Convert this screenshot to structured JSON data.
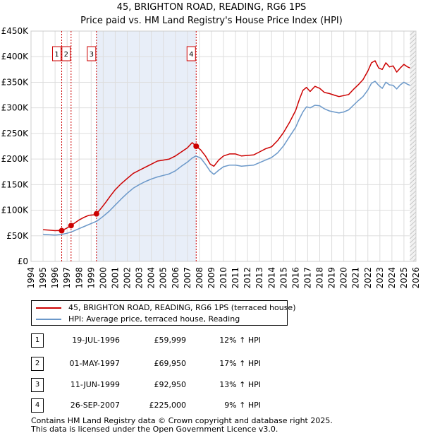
{
  "title": "45, BRIGHTON ROAD, READING, RG6 1PS",
  "subtitle": "Price paid vs. HM Land Registry's House Price Index (HPI)",
  "colors": {
    "property": "#cc0000",
    "hpi": "#6b98c9",
    "band": "#e8eef8",
    "vline": "#cc0000",
    "grid": "#dddddd"
  },
  "chart_data": {
    "type": "line",
    "title": "45, BRIGHTON ROAD, READING, RG6 1PS",
    "subtitle": "Price paid vs. HM Land Registry's House Price Index (HPI)",
    "xlabel": "",
    "ylabel": "",
    "xlim": [
      1994,
      2026
    ],
    "ylim": [
      0,
      450000
    ],
    "x_ticks": [
      "1994",
      "1995",
      "1996",
      "1997",
      "1998",
      "1999",
      "2000",
      "2001",
      "2002",
      "2003",
      "2004",
      "2005",
      "2006",
      "2007",
      "2008",
      "2009",
      "2010",
      "2011",
      "2012",
      "2013",
      "2014",
      "2015",
      "2016",
      "2017",
      "2018",
      "2019",
      "2020",
      "2021",
      "2022",
      "2023",
      "2024",
      "2025",
      "2026"
    ],
    "y_ticks": [
      {
        "value": 0,
        "label": "£0"
      },
      {
        "value": 50000,
        "label": "£50K"
      },
      {
        "value": 100000,
        "label": "£100K"
      },
      {
        "value": 150000,
        "label": "£150K"
      },
      {
        "value": 200000,
        "label": "£200K"
      },
      {
        "value": 250000,
        "label": "£250K"
      },
      {
        "value": 300000,
        "label": "£300K"
      },
      {
        "value": 350000,
        "label": "£350K"
      },
      {
        "value": 400000,
        "label": "£400K"
      },
      {
        "value": 450000,
        "label": "£450K"
      }
    ],
    "shaded_range": [
      1999.44,
      2007.73
    ],
    "series": [
      {
        "name": "45, BRIGHTON ROAD, READING, RG6 1PS (terraced house)",
        "x": [
          1995.0,
          1995.5,
          1996.0,
          1996.3,
          1996.55,
          1996.9,
          1997.33,
          1997.7,
          1998.0,
          1998.4,
          1998.8,
          1999.2,
          1999.44,
          1999.8,
          2000.2,
          2000.6,
          2001.0,
          2001.5,
          2002.0,
          2002.5,
          2003.0,
          2003.5,
          2004.0,
          2004.5,
          2005.0,
          2005.5,
          2006.0,
          2006.5,
          2007.0,
          2007.4,
          2007.73,
          2008.1,
          2008.5,
          2008.9,
          2009.2,
          2009.6,
          2010.0,
          2010.5,
          2011.0,
          2011.5,
          2012.0,
          2012.5,
          2013.0,
          2013.5,
          2014.0,
          2014.5,
          2015.0,
          2015.5,
          2016.0,
          2016.3,
          2016.6,
          2016.9,
          2017.2,
          2017.6,
          2018.0,
          2018.4,
          2018.8,
          2019.2,
          2019.6,
          2020.0,
          2020.4,
          2020.8,
          2021.2,
          2021.6,
          2022.0,
          2022.3,
          2022.6,
          2022.9,
          2023.2,
          2023.5,
          2023.8,
          2024.1,
          2024.4,
          2024.7,
          2025.0,
          2025.3,
          2025.5
        ],
        "values": [
          62000,
          61000,
          60000,
          60500,
          59999,
          64000,
          69950,
          76000,
          81000,
          86000,
          90000,
          91000,
          92950,
          103000,
          115000,
          128000,
          140000,
          152000,
          162000,
          172000,
          178000,
          184000,
          190000,
          196000,
          198000,
          200000,
          206000,
          214000,
          222000,
          232000,
          225000,
          218000,
          206000,
          190000,
          186000,
          198000,
          206000,
          210000,
          210000,
          206000,
          207000,
          208000,
          214000,
          220000,
          224000,
          236000,
          252000,
          272000,
          295000,
          316000,
          334000,
          340000,
          332000,
          342000,
          338000,
          330000,
          328000,
          325000,
          322000,
          324000,
          326000,
          336000,
          345000,
          355000,
          372000,
          388000,
          392000,
          378000,
          375000,
          388000,
          380000,
          382000,
          370000,
          378000,
          385000,
          380000,
          378000
        ]
      },
      {
        "name": "HPI: Average price, terraced house, Reading",
        "x": [
          1995.0,
          1995.5,
          1996.0,
          1996.5,
          1997.0,
          1997.5,
          1998.0,
          1998.5,
          1999.0,
          1999.5,
          2000.0,
          2000.5,
          2001.0,
          2001.5,
          2002.0,
          2002.5,
          2003.0,
          2003.5,
          2004.0,
          2004.5,
          2005.0,
          2005.5,
          2006.0,
          2006.5,
          2007.0,
          2007.4,
          2007.7,
          2008.1,
          2008.5,
          2008.9,
          2009.2,
          2009.6,
          2010.0,
          2010.5,
          2011.0,
          2011.5,
          2012.0,
          2012.5,
          2013.0,
          2013.5,
          2014.0,
          2014.5,
          2015.0,
          2015.5,
          2016.0,
          2016.3,
          2016.6,
          2016.9,
          2017.2,
          2017.6,
          2018.0,
          2018.4,
          2018.8,
          2019.2,
          2019.6,
          2020.0,
          2020.4,
          2020.8,
          2021.2,
          2021.6,
          2022.0,
          2022.3,
          2022.6,
          2022.9,
          2023.2,
          2023.5,
          2023.8,
          2024.1,
          2024.4,
          2024.7,
          2025.0,
          2025.3,
          2025.5
        ],
        "values": [
          53000,
          52000,
          51500,
          52500,
          55000,
          59000,
          64000,
          69000,
          74000,
          79000,
          88000,
          98000,
          110000,
          122000,
          133000,
          143000,
          150000,
          156000,
          161000,
          165000,
          168000,
          171000,
          177000,
          186000,
          194000,
          202000,
          206000,
          202000,
          190000,
          176000,
          170000,
          178000,
          185000,
          188000,
          188000,
          186000,
          187000,
          188000,
          193000,
          198000,
          203000,
          212000,
          226000,
          244000,
          262000,
          278000,
          292000,
          302000,
          300000,
          305000,
          304000,
          298000,
          294000,
          292000,
          290000,
          292000,
          296000,
          305000,
          314000,
          322000,
          335000,
          348000,
          352000,
          344000,
          338000,
          350000,
          345000,
          344000,
          337000,
          345000,
          350000,
          346000,
          344000
        ]
      }
    ],
    "sales": [
      {
        "id": "1",
        "x": 1996.55,
        "price": 59999,
        "date": "19-JUL-1996",
        "price_label": "£59,999",
        "delta": "12% ↑ HPI"
      },
      {
        "id": "2",
        "x": 1997.33,
        "price": 69950,
        "date": "01-MAY-1997",
        "price_label": "£69,950",
        "delta": "17% ↑ HPI"
      },
      {
        "id": "3",
        "x": 1999.44,
        "price": 92950,
        "date": "11-JUN-1999",
        "price_label": "£92,950",
        "delta": "13% ↑ HPI"
      },
      {
        "id": "4",
        "x": 2007.73,
        "price": 225000,
        "date": "26-SEP-2007",
        "price_label": "£225,000",
        "delta": "9% ↑ HPI"
      }
    ]
  },
  "legend": {
    "property_label": "45, BRIGHTON ROAD, READING, RG6 1PS (terraced house)",
    "hpi_label": "HPI: Average price, terraced house, Reading"
  },
  "transactions": [
    {
      "id": "1",
      "date": "19-JUL-1996",
      "price": "£59,999",
      "delta": "12% ↑ HPI"
    },
    {
      "id": "2",
      "date": "01-MAY-1997",
      "price": "£69,950",
      "delta": "17% ↑ HPI"
    },
    {
      "id": "3",
      "date": "11-JUN-1999",
      "price": "£92,950",
      "delta": "13% ↑ HPI"
    },
    {
      "id": "4",
      "date": "26-SEP-2007",
      "price": "£225,000",
      "delta": "9% ↑ HPI"
    }
  ],
  "footer": {
    "line1": "Contains HM Land Registry data © Crown copyright and database right 2025.",
    "line2": "This data is licensed under the Open Government Licence v3.0."
  }
}
